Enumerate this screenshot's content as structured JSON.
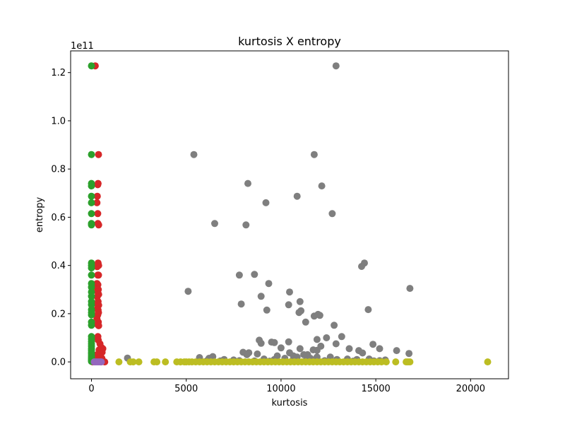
{
  "chart_data": {
    "type": "scatter",
    "title": "kurtosis X entropy",
    "xlabel": "kurtosis",
    "ylabel": "entropy",
    "offset_label": "1e11",
    "xlim": [
      -1100,
      22000
    ],
    "ylim": [
      -0.07,
      1.29
    ],
    "y_scale_factor": 100000000000,
    "x_ticks": [
      0,
      5000,
      10000,
      15000,
      20000
    ],
    "x_tick_labels": [
      "0",
      "5000",
      "10000",
      "15000",
      "20000"
    ],
    "y_ticks": [
      0.0,
      0.2,
      0.4,
      0.6,
      0.8,
      1.0,
      1.2
    ],
    "y_tick_labels": [
      "0.0",
      "0.2",
      "0.4",
      "0.6",
      "0.8",
      "1.0",
      "1.2"
    ],
    "grid": false,
    "series": [
      {
        "color": "#7f7f7f",
        "points": [
          [
            12900,
            1.228
          ],
          [
            5400,
            0.86
          ],
          [
            11750,
            0.86
          ],
          [
            8250,
            0.74
          ],
          [
            12150,
            0.73
          ],
          [
            10850,
            0.687
          ],
          [
            9200,
            0.66
          ],
          [
            6500,
            0.574
          ],
          [
            12700,
            0.615
          ],
          [
            8150,
            0.568
          ],
          [
            14400,
            0.41
          ],
          [
            14250,
            0.396
          ],
          [
            7800,
            0.36
          ],
          [
            8600,
            0.363
          ],
          [
            9350,
            0.325
          ],
          [
            5100,
            0.293
          ],
          [
            16800,
            0.305
          ],
          [
            10450,
            0.29
          ],
          [
            8950,
            0.272
          ],
          [
            11000,
            0.25
          ],
          [
            7900,
            0.24
          ],
          [
            10400,
            0.237
          ],
          [
            14600,
            0.217
          ],
          [
            9250,
            0.215
          ],
          [
            11050,
            0.212
          ],
          [
            10950,
            0.205
          ],
          [
            11950,
            0.197
          ],
          [
            12050,
            0.193
          ],
          [
            11750,
            0.19
          ],
          [
            11300,
            0.165
          ],
          [
            12800,
            0.152
          ],
          [
            13200,
            0.105
          ],
          [
            12400,
            0.1
          ],
          [
            11900,
            0.093
          ],
          [
            10400,
            0.083
          ],
          [
            8850,
            0.09
          ],
          [
            8950,
            0.077
          ],
          [
            9500,
            0.082
          ],
          [
            9650,
            0.08
          ],
          [
            14850,
            0.073
          ],
          [
            12900,
            0.075
          ],
          [
            12100,
            0.065
          ],
          [
            13600,
            0.055
          ],
          [
            11000,
            0.055
          ],
          [
            10000,
            0.058
          ],
          [
            15200,
            0.055
          ],
          [
            14100,
            0.047
          ],
          [
            16100,
            0.047
          ],
          [
            11700,
            0.05
          ],
          [
            11900,
            0.048
          ],
          [
            8000,
            0.04
          ],
          [
            8300,
            0.038
          ],
          [
            10450,
            0.038
          ],
          [
            14300,
            0.037
          ],
          [
            16750,
            0.035
          ],
          [
            11400,
            0.03
          ],
          [
            11200,
            0.03
          ],
          [
            10650,
            0.025
          ],
          [
            8200,
            0.03
          ],
          [
            8750,
            0.033
          ],
          [
            9800,
            0.025
          ],
          [
            11900,
            0.02
          ],
          [
            6400,
            0.022
          ],
          [
            5700,
            0.018
          ],
          [
            1900,
            0.016
          ],
          [
            6200,
            0.015
          ],
          [
            7000,
            0.01
          ],
          [
            7500,
            0.008
          ],
          [
            9100,
            0.012
          ],
          [
            9650,
            0.01
          ],
          [
            10200,
            0.015
          ],
          [
            10850,
            0.02
          ],
          [
            11550,
            0.015
          ],
          [
            12600,
            0.02
          ],
          [
            12950,
            0.01
          ],
          [
            13500,
            0.012
          ],
          [
            14000,
            0.01
          ],
          [
            14650,
            0.012
          ],
          [
            15500,
            0.008
          ],
          [
            6100,
            0.005
          ],
          [
            6800,
            0.004
          ],
          [
            7800,
            0.005
          ],
          [
            8600,
            0.004
          ],
          [
            9400,
            0.003
          ],
          [
            10600,
            0.005
          ],
          [
            11300,
            0.004
          ],
          [
            12300,
            0.005
          ],
          [
            13800,
            0.003
          ],
          [
            14900,
            0.004
          ],
          [
            15200,
            0.005
          ]
        ]
      },
      {
        "color": "#bcbd22",
        "points": [
          [
            1450,
            0.0
          ],
          [
            2050,
            0.0
          ],
          [
            2200,
            0.0
          ],
          [
            2500,
            0.0
          ],
          [
            3300,
            0.0
          ],
          [
            3450,
            0.0
          ],
          [
            3900,
            0.0
          ],
          [
            4500,
            0.0
          ],
          [
            4700,
            0.0
          ],
          [
            4900,
            0.0
          ],
          [
            5000,
            0.0
          ],
          [
            5150,
            0.0
          ],
          [
            5300,
            0.0
          ],
          [
            5500,
            0.0
          ],
          [
            5700,
            0.0
          ],
          [
            5900,
            0.0
          ],
          [
            6100,
            0.0
          ],
          [
            6300,
            0.0
          ],
          [
            6500,
            0.0
          ],
          [
            6700,
            0.0
          ],
          [
            6900,
            0.0
          ],
          [
            7100,
            0.0
          ],
          [
            7300,
            0.0
          ],
          [
            7500,
            0.0
          ],
          [
            7700,
            0.0
          ],
          [
            7900,
            0.0
          ],
          [
            8100,
            0.0
          ],
          [
            8300,
            0.0
          ],
          [
            8500,
            0.0
          ],
          [
            8700,
            0.0
          ],
          [
            8900,
            0.0
          ],
          [
            9100,
            0.0
          ],
          [
            9300,
            0.0
          ],
          [
            9500,
            0.0
          ],
          [
            9700,
            0.0
          ],
          [
            9900,
            0.0
          ],
          [
            10100,
            0.0
          ],
          [
            10300,
            0.0
          ],
          [
            10500,
            0.0
          ],
          [
            10700,
            0.0
          ],
          [
            10900,
            0.0
          ],
          [
            11100,
            0.0
          ],
          [
            11300,
            0.0
          ],
          [
            11500,
            0.0
          ],
          [
            11700,
            0.0
          ],
          [
            11900,
            0.0
          ],
          [
            12100,
            0.0
          ],
          [
            12300,
            0.0
          ],
          [
            12500,
            0.0
          ],
          [
            12700,
            0.0
          ],
          [
            12900,
            0.0
          ],
          [
            13100,
            0.0
          ],
          [
            13300,
            0.0
          ],
          [
            13500,
            0.0
          ],
          [
            13700,
            0.0
          ],
          [
            13900,
            0.0
          ],
          [
            14100,
            0.0
          ],
          [
            14300,
            0.0
          ],
          [
            14500,
            0.0
          ],
          [
            14700,
            0.0
          ],
          [
            14900,
            0.0
          ],
          [
            15100,
            0.0
          ],
          [
            15300,
            0.0
          ],
          [
            15550,
            0.0
          ],
          [
            16050,
            0.0
          ],
          [
            16600,
            0.0
          ],
          [
            16700,
            0.0
          ],
          [
            16800,
            0.0
          ],
          [
            20900,
            0.0
          ]
        ]
      },
      {
        "color": "#d62728",
        "points": [
          [
            200,
            1.228
          ],
          [
            370,
            0.86
          ],
          [
            350,
            0.74
          ],
          [
            330,
            0.735
          ],
          [
            310,
            0.687
          ],
          [
            290,
            0.66
          ],
          [
            330,
            0.615
          ],
          [
            340,
            0.574
          ],
          [
            380,
            0.568
          ],
          [
            350,
            0.41
          ],
          [
            380,
            0.4
          ],
          [
            300,
            0.395
          ],
          [
            330,
            0.36
          ],
          [
            370,
            0.36
          ],
          [
            290,
            0.325
          ],
          [
            340,
            0.32
          ],
          [
            310,
            0.305
          ],
          [
            360,
            0.3
          ],
          [
            330,
            0.29
          ],
          [
            380,
            0.28
          ],
          [
            300,
            0.27
          ],
          [
            350,
            0.25
          ],
          [
            320,
            0.24
          ],
          [
            380,
            0.235
          ],
          [
            300,
            0.22
          ],
          [
            350,
            0.215
          ],
          [
            370,
            0.205
          ],
          [
            330,
            0.195
          ],
          [
            290,
            0.18
          ],
          [
            360,
            0.165
          ],
          [
            320,
            0.155
          ],
          [
            380,
            0.15
          ],
          [
            340,
            0.105
          ],
          [
            300,
            0.1
          ],
          [
            360,
            0.09
          ],
          [
            450,
            0.075
          ],
          [
            520,
            0.06
          ],
          [
            600,
            0.055
          ],
          [
            400,
            0.05
          ],
          [
            500,
            0.045
          ],
          [
            560,
            0.04
          ],
          [
            430,
            0.035
          ],
          [
            300,
            0.03
          ],
          [
            380,
            0.025
          ],
          [
            470,
            0.02
          ],
          [
            550,
            0.015
          ],
          [
            330,
            0.01
          ],
          [
            420,
            0.005
          ],
          [
            600,
            0.004
          ],
          [
            60,
            0.0
          ],
          [
            500,
            0.0
          ],
          [
            700,
            0.0
          ]
        ]
      },
      {
        "color": "#2ca02c",
        "points": [
          [
            0,
            1.228
          ],
          [
            0,
            0.86
          ],
          [
            0,
            0.74
          ],
          [
            0,
            0.73
          ],
          [
            0,
            0.687
          ],
          [
            0,
            0.66
          ],
          [
            0,
            0.615
          ],
          [
            0,
            0.574
          ],
          [
            0,
            0.568
          ],
          [
            0,
            0.41
          ],
          [
            0,
            0.4
          ],
          [
            0,
            0.39
          ],
          [
            0,
            0.36
          ],
          [
            0,
            0.325
          ],
          [
            0,
            0.31
          ],
          [
            0,
            0.29
          ],
          [
            0,
            0.272
          ],
          [
            0,
            0.25
          ],
          [
            0,
            0.237
          ],
          [
            0,
            0.217
          ],
          [
            0,
            0.205
          ],
          [
            0,
            0.195
          ],
          [
            0,
            0.165
          ],
          [
            0,
            0.152
          ],
          [
            0,
            0.105
          ],
          [
            0,
            0.095
          ],
          [
            0,
            0.085
          ],
          [
            0,
            0.075
          ],
          [
            0,
            0.065
          ],
          [
            0,
            0.055
          ],
          [
            0,
            0.048
          ],
          [
            0,
            0.04
          ],
          [
            0,
            0.033
          ],
          [
            0,
            0.025
          ],
          [
            0,
            0.018
          ],
          [
            0,
            0.012
          ],
          [
            0,
            0.006
          ],
          [
            0,
            0.002
          ]
        ]
      },
      {
        "color": "#9467bd",
        "points": [
          [
            150,
            0.0
          ],
          [
            230,
            0.0
          ],
          [
            310,
            0.0
          ],
          [
            390,
            0.0
          ],
          [
            470,
            0.0
          ],
          [
            520,
            0.0
          ]
        ]
      }
    ]
  }
}
